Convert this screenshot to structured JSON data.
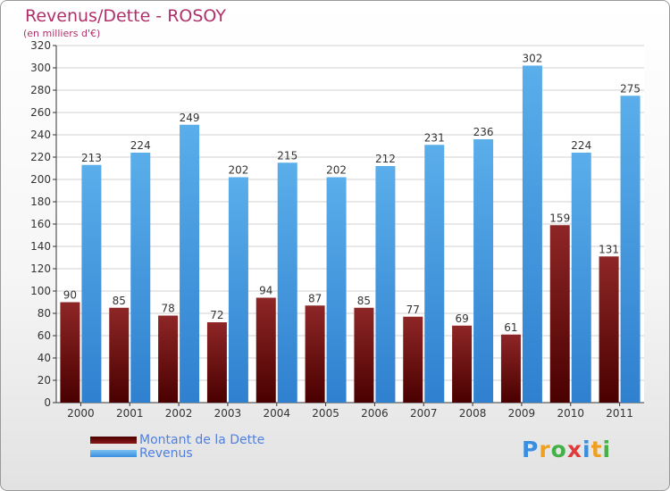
{
  "header": {
    "title": "Revenus/Dette - ROSOY",
    "subtitle": "(en milliers d'€)"
  },
  "legend": {
    "debt_label": "Montant de la Dette",
    "revenue_label": "Revenus"
  },
  "logo": {
    "text": "Proxiti"
  },
  "colors": {
    "debt": "#7a1414",
    "revenue": "#4fa3e6"
  },
  "chart_data": {
    "type": "bar",
    "title": "Revenus/Dette - ROSOY",
    "subtitle": "(en milliers d'€)",
    "xlabel": "",
    "ylabel": "",
    "ylim": [
      0,
      320
    ],
    "ytick_step": 20,
    "grid": true,
    "categories": [
      "2000",
      "2001",
      "2002",
      "2003",
      "2004",
      "2005",
      "2006",
      "2007",
      "2008",
      "2009",
      "2010",
      "2011"
    ],
    "series": [
      {
        "name": "Montant de la Dette",
        "values": [
          90,
          85,
          78,
          72,
          94,
          87,
          85,
          77,
          69,
          61,
          159,
          131
        ]
      },
      {
        "name": "Revenus",
        "values": [
          213,
          224,
          249,
          202,
          215,
          202,
          212,
          231,
          236,
          302,
          224,
          275
        ]
      }
    ]
  }
}
